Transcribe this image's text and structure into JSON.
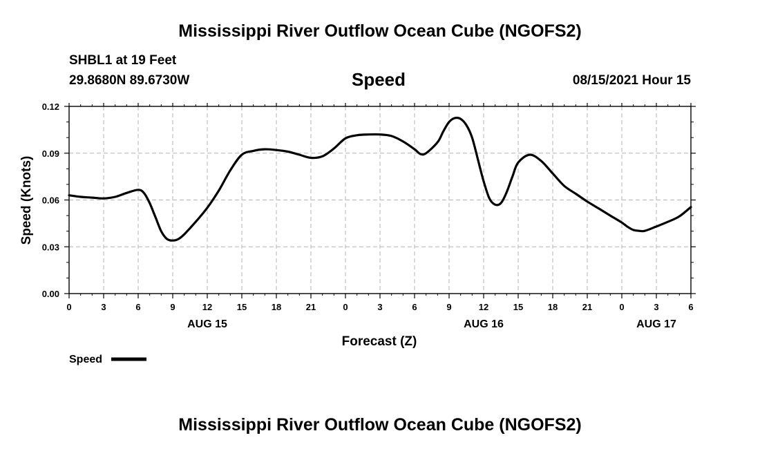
{
  "header": {
    "title": "Mississippi River Outflow Ocean Cube (NGOFS2)",
    "station": "SHBL1 at 19 Feet",
    "coords": "29.8680N  89.6730W",
    "variable": "Speed",
    "datetime": "08/15/2021 Hour 15"
  },
  "footer": {
    "title": "Mississippi River Outflow Ocean Cube (NGOFS2)"
  },
  "chart_data": {
    "type": "line",
    "title": "Speed",
    "xlabel": "Forecast (Z)",
    "ylabel": "Speed (Knots)",
    "xlim": [
      0,
      54
    ],
    "ylim": [
      0,
      0.12
    ],
    "grid": true,
    "x_ticks": [
      0,
      3,
      6,
      9,
      12,
      15,
      18,
      21,
      24,
      27,
      30,
      33,
      36,
      39,
      42,
      45,
      48,
      51,
      54
    ],
    "x_tick_labels": [
      "0",
      "3",
      "6",
      "9",
      "12",
      "15",
      "18",
      "21",
      "0",
      "3",
      "6",
      "9",
      "12",
      "15",
      "18",
      "21",
      "0",
      "3",
      "6"
    ],
    "y_ticks": [
      0.0,
      0.03,
      0.06,
      0.09,
      0.12
    ],
    "y_tick_labels": [
      "0.00",
      "0.03",
      "0.06",
      "0.09",
      "0.12"
    ],
    "date_labels": [
      {
        "x": 12,
        "label": "AUG 15"
      },
      {
        "x": 36,
        "label": "AUG 16"
      },
      {
        "x": 51,
        "label": "AUG 17"
      }
    ],
    "legend": {
      "label": "Speed",
      "position": "bottom-left"
    },
    "series": [
      {
        "name": "Speed",
        "color": "#000000",
        "x": [
          0,
          1,
          2,
          3,
          4,
          5,
          6,
          6.5,
          7,
          7.5,
          8,
          8.5,
          9,
          9.5,
          10,
          11,
          12,
          13,
          14,
          15,
          16,
          17,
          18,
          19,
          20,
          21,
          22,
          23,
          24,
          25,
          26,
          27,
          28,
          29,
          30,
          30.5,
          31,
          32,
          32.5,
          33,
          33.5,
          34,
          34.5,
          35,
          35.5,
          36,
          36.5,
          37,
          37.5,
          38,
          38.5,
          39,
          40,
          41,
          42,
          43,
          44,
          45,
          46,
          47,
          48,
          48.5,
          49,
          49.5,
          50,
          51,
          52,
          53,
          54
        ],
        "values": [
          0.063,
          0.062,
          0.0615,
          0.061,
          0.062,
          0.0645,
          0.0665,
          0.0645,
          0.058,
          0.049,
          0.04,
          0.035,
          0.034,
          0.035,
          0.038,
          0.046,
          0.055,
          0.066,
          0.079,
          0.089,
          0.0915,
          0.0925,
          0.092,
          0.091,
          0.089,
          0.087,
          0.088,
          0.093,
          0.0995,
          0.1015,
          0.102,
          0.102,
          0.101,
          0.0975,
          0.0925,
          0.0895,
          0.09,
          0.097,
          0.104,
          0.11,
          0.1125,
          0.112,
          0.108,
          0.1,
          0.086,
          0.072,
          0.061,
          0.057,
          0.058,
          0.065,
          0.075,
          0.084,
          0.089,
          0.085,
          0.077,
          0.069,
          0.064,
          0.059,
          0.0545,
          0.05,
          0.0455,
          0.0428,
          0.0408,
          0.0402,
          0.0402,
          0.043,
          0.046,
          0.0495,
          0.0555
        ]
      }
    ]
  }
}
